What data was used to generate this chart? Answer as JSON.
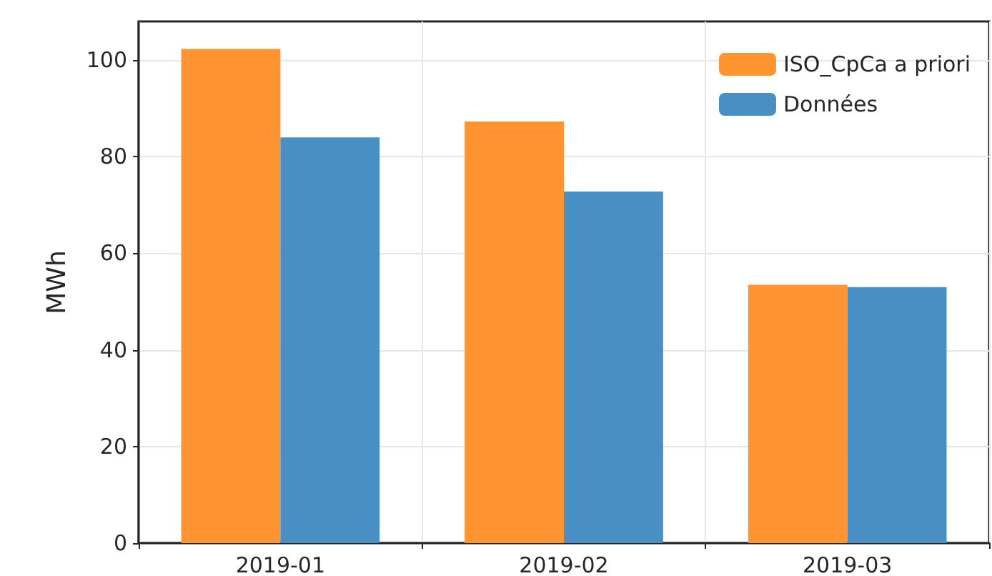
{
  "chart_data": {
    "type": "bar",
    "ylabel": "MWh",
    "categories": [
      "2019-01",
      "2019-02",
      "2019-03"
    ],
    "series": [
      {
        "name": "ISO_CpCa a priori",
        "color": "#ff9433",
        "values": [
          102.3,
          87.3,
          53.5
        ]
      },
      {
        "name": "Données",
        "color": "#4a8fc4",
        "values": [
          84.0,
          72.8,
          53.0
        ]
      }
    ],
    "ylim": [
      0,
      108
    ],
    "yticks": [
      0,
      20,
      40,
      60,
      80,
      100
    ],
    "grid": true,
    "legend": "top right"
  }
}
